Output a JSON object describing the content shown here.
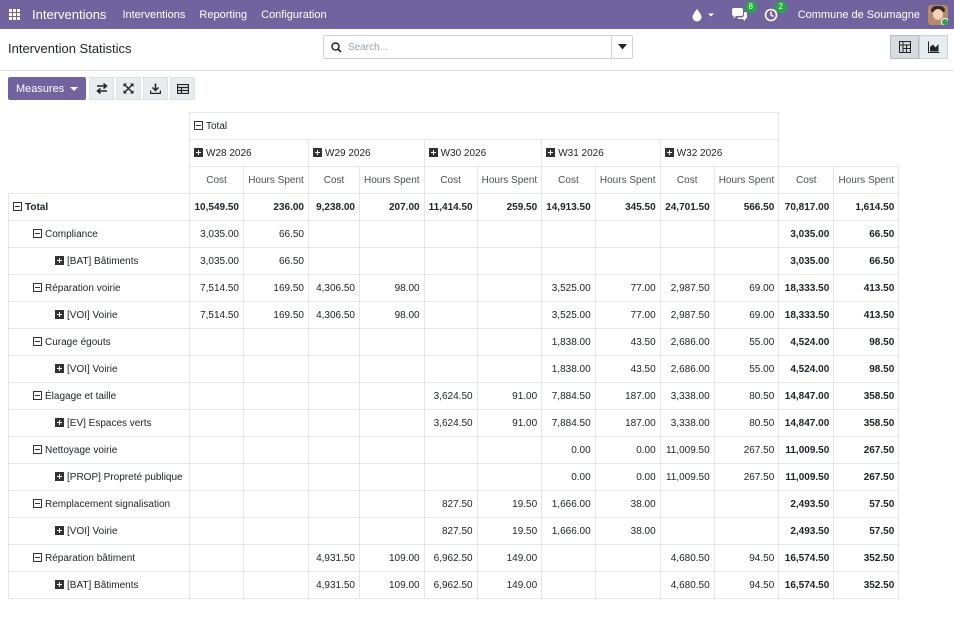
{
  "navbar": {
    "brand": "Interventions",
    "menu": [
      "Interventions",
      "Reporting",
      "Configuration"
    ],
    "messages_count": "8",
    "activities_count": "2",
    "company": "Commune de Soumagne",
    "accent": "#71639e"
  },
  "breadcrumb": "Intervention Statistics",
  "search": {
    "placeholder": "Search..."
  },
  "buttons": {
    "measures": "Measures"
  },
  "pivot": {
    "header_total": "Total",
    "weeks": [
      "W28 2026",
      "W29 2026",
      "W30 2026",
      "W31 2026",
      "W32 2026"
    ],
    "measures": [
      "Cost",
      "Hours Spent"
    ],
    "rows": [
      {
        "label": "Total",
        "level": 0,
        "icon": "minus",
        "cells": [
          "10,549.50",
          "236.00",
          "9,238.00",
          "207.00",
          "11,414.50",
          "259.50",
          "14,913.50",
          "345.50",
          "24,701.50",
          "566.50",
          "70,817.00",
          "1,614.50"
        ]
      },
      {
        "label": "Compliance",
        "level": 1,
        "icon": "minus",
        "cells": [
          "3,035.00",
          "66.50",
          "",
          "",
          "",
          "",
          "",
          "",
          "",
          "",
          "3,035.00",
          "66.50"
        ]
      },
      {
        "label": "[BAT] Bâtiments",
        "level": 2,
        "icon": "plus",
        "cells": [
          "3,035.00",
          "66.50",
          "",
          "",
          "",
          "",
          "",
          "",
          "",
          "",
          "3,035.00",
          "66.50"
        ]
      },
      {
        "label": "Réparation voirie",
        "level": 1,
        "icon": "minus",
        "cells": [
          "7,514.50",
          "169.50",
          "4,306.50",
          "98.00",
          "",
          "",
          "3,525.00",
          "77.00",
          "2,987.50",
          "69.00",
          "18,333.50",
          "413.50"
        ]
      },
      {
        "label": "[VOI] Voirie",
        "level": 2,
        "icon": "plus",
        "cells": [
          "7,514.50",
          "169.50",
          "4,306.50",
          "98.00",
          "",
          "",
          "3,525.00",
          "77.00",
          "2,987.50",
          "69.00",
          "18,333.50",
          "413.50"
        ]
      },
      {
        "label": "Curage égouts",
        "level": 1,
        "icon": "minus",
        "cells": [
          "",
          "",
          "",
          "",
          "",
          "",
          "1,838.00",
          "43.50",
          "2,686.00",
          "55.00",
          "4,524.00",
          "98.50"
        ]
      },
      {
        "label": "[VOI] Voirie",
        "level": 2,
        "icon": "plus",
        "cells": [
          "",
          "",
          "",
          "",
          "",
          "",
          "1,838.00",
          "43.50",
          "2,686.00",
          "55.00",
          "4,524.00",
          "98.50"
        ]
      },
      {
        "label": "Élagage et taille",
        "level": 1,
        "icon": "minus",
        "cells": [
          "",
          "",
          "",
          "",
          "3,624.50",
          "91.00",
          "7,884.50",
          "187.00",
          "3,338.00",
          "80.50",
          "14,847.00",
          "358.50"
        ]
      },
      {
        "label": "[EV] Espaces verts",
        "level": 2,
        "icon": "plus",
        "cells": [
          "",
          "",
          "",
          "",
          "3,624.50",
          "91.00",
          "7,884.50",
          "187.00",
          "3,338.00",
          "80.50",
          "14,847.00",
          "358.50"
        ]
      },
      {
        "label": "Nettoyage voirie",
        "level": 1,
        "icon": "minus",
        "cells": [
          "",
          "",
          "",
          "",
          "",
          "",
          "0.00",
          "0.00",
          "11,009.50",
          "267.50",
          "11,009.50",
          "267.50"
        ]
      },
      {
        "label": "[PROP] Propreté publique",
        "level": 2,
        "icon": "plus",
        "cells": [
          "",
          "",
          "",
          "",
          "",
          "",
          "0.00",
          "0.00",
          "11,009.50",
          "267.50",
          "11,009.50",
          "267.50"
        ]
      },
      {
        "label": "Remplacement signalisation",
        "level": 1,
        "icon": "minus",
        "cells": [
          "",
          "",
          "",
          "",
          "827.50",
          "19.50",
          "1,666.00",
          "38.00",
          "",
          "",
          "2,493.50",
          "57.50"
        ]
      },
      {
        "label": "[VOI] Voirie",
        "level": 2,
        "icon": "plus",
        "cells": [
          "",
          "",
          "",
          "",
          "827.50",
          "19.50",
          "1,666.00",
          "38.00",
          "",
          "",
          "2,493.50",
          "57.50"
        ]
      },
      {
        "label": "Réparation bâtiment",
        "level": 1,
        "icon": "minus",
        "cells": [
          "",
          "",
          "4,931.50",
          "109.00",
          "6,962.50",
          "149.00",
          "",
          "",
          "4,680.50",
          "94.50",
          "16,574.50",
          "352.50"
        ]
      },
      {
        "label": "[BAT] Bâtiments",
        "level": 2,
        "icon": "plus",
        "cells": [
          "",
          "",
          "4,931.50",
          "109.00",
          "6,962.50",
          "149.00",
          "",
          "",
          "4,680.50",
          "94.50",
          "16,574.50",
          "352.50"
        ]
      }
    ]
  }
}
